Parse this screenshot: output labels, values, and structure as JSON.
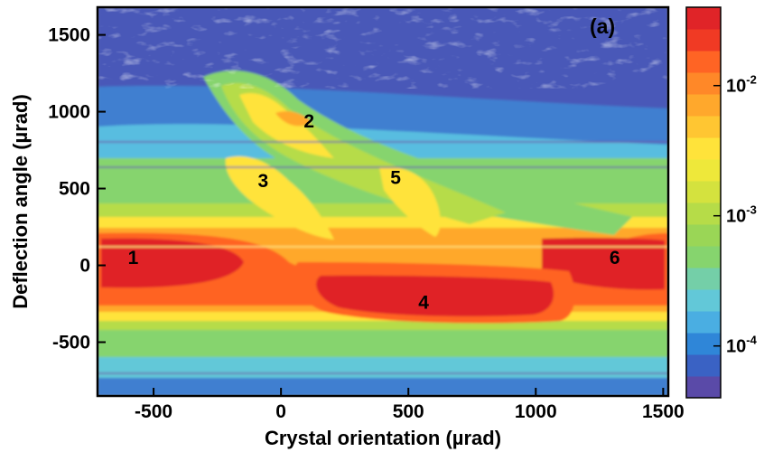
{
  "chart_data": {
    "type": "heatmap",
    "panel_label": "(a)",
    "xlabel": "Crystal orientation (µrad)",
    "ylabel": "Deflection angle (µrad)",
    "xlim": [
      -720,
      1520
    ],
    "ylim": [
      -850,
      1680
    ],
    "x_ticks": [
      -500,
      0,
      500,
      1000,
      1500
    ],
    "x_tick_labels": [
      "-500",
      "0",
      "500",
      "1000",
      "1500"
    ],
    "y_ticks": [
      -500,
      0,
      500,
      1000,
      1500
    ],
    "y_tick_labels": [
      "-500",
      "0",
      "500",
      "1000",
      "1500"
    ],
    "colorbar": {
      "scale": "log",
      "range": [
        4e-05,
        0.04
      ],
      "ticks": [
        {
          "value": 0.01,
          "base": "10",
          "exp": "-2"
        },
        {
          "value": 0.001,
          "base": "10",
          "exp": "-3"
        },
        {
          "value": 0.0001,
          "base": "10",
          "exp": "-4"
        }
      ],
      "colors": [
        "#5a4aa8",
        "#3a62c4",
        "#2f86d8",
        "#4aaee2",
        "#62c8d8",
        "#74cfa8",
        "#86d46e",
        "#9ad656",
        "#b6dc48",
        "#d4e23e",
        "#eee83a",
        "#ffe33a",
        "#ffc632",
        "#ffa82c",
        "#ff8828",
        "#ff6424",
        "#f03a24",
        "#e02428"
      ]
    },
    "regions": [
      {
        "label": "1",
        "x": -580,
        "y": 50
      },
      {
        "label": "2",
        "x": 110,
        "y": 940
      },
      {
        "label": "3",
        "x": -70,
        "y": 550
      },
      {
        "label": "4",
        "x": 560,
        "y": -240
      },
      {
        "label": "5",
        "x": 450,
        "y": 570
      },
      {
        "label": "6",
        "x": 1310,
        "y": 50
      }
    ]
  },
  "colors": {
    "background": "#ffffff",
    "frame": "#000000"
  }
}
